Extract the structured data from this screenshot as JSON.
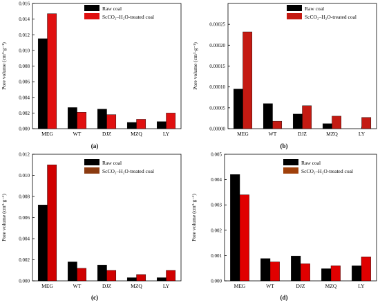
{
  "figure": {
    "colors": {
      "raw": "#000000",
      "treated_a": "#e01010",
      "treated_b": "#c41a12",
      "treated_c": "#d00000",
      "treated_d": "#e00000",
      "legend_treated_c": "#8b3a10",
      "legend_treated_d": "#a0400a"
    }
  },
  "chart_data": [
    {
      "panel_label": "(a)",
      "type": "bar",
      "ylabel": "Pore volume (cm³·g⁻¹)",
      "categories": [
        "MEG",
        "WT",
        "DJZ",
        "MZQ",
        "LY"
      ],
      "ylim": [
        0,
        0.016
      ],
      "yticks": [
        "0.000",
        "0.002",
        "0.004",
        "0.006",
        "0.008",
        "0.010",
        "0.012",
        "0.014",
        "0.016"
      ],
      "ytick_values": [
        0,
        0.002,
        0.004,
        0.006,
        0.008,
        0.01,
        0.012,
        0.014,
        0.016
      ],
      "legend_position": "top-right",
      "series": [
        {
          "name": "Raw coal",
          "color": "#000000",
          "values": [
            0.0115,
            0.0027,
            0.0025,
            0.0008,
            0.0009
          ]
        },
        {
          "name": "ScCO₂–H₂O-treated coal",
          "color": "#e01010",
          "values": [
            0.0147,
            0.0021,
            0.0018,
            0.0012,
            0.002
          ]
        }
      ]
    },
    {
      "panel_label": "(b)",
      "type": "bar",
      "ylabel": "Pore volume (cm³·g⁻¹)",
      "categories": [
        "MEG",
        "WT",
        "DJZ",
        "MZQ",
        "LY"
      ],
      "ylim": [
        0,
        0.0003
      ],
      "yticks": [
        "0.00000",
        "0.00005",
        "0.00010",
        "0.00015",
        "0.00020",
        "0.00025"
      ],
      "ytick_values": [
        0,
        5e-05,
        0.0001,
        0.00015,
        0.0002,
        0.00025
      ],
      "legend_position": "top-right",
      "series": [
        {
          "name": "Raw coal",
          "color": "#000000",
          "values": [
            9.5e-05,
            6e-05,
            3.5e-05,
            1.2e-05,
            0.0
          ]
        },
        {
          "name": "ScCO₂–H₂O-treated coal",
          "color": "#c41a12",
          "values": [
            0.000232,
            1.8e-05,
            5.5e-05,
            3e-05,
            2.7e-05
          ]
        }
      ]
    },
    {
      "panel_label": "(c)",
      "type": "bar",
      "ylabel": "Pore volume (cm³·g⁻¹)",
      "categories": [
        "MEG",
        "WT",
        "DJZ",
        "MZQ",
        "LY"
      ],
      "ylim": [
        0,
        0.012
      ],
      "yticks": [
        "0.000",
        "0.002",
        "0.004",
        "0.006",
        "0.008",
        "0.010",
        "0.012"
      ],
      "ytick_values": [
        0,
        0.002,
        0.004,
        0.006,
        0.008,
        0.01,
        0.012
      ],
      "legend_position": "top-right",
      "series": [
        {
          "name": "Raw coal",
          "color": "#000000",
          "values": [
            0.0072,
            0.0018,
            0.0015,
            0.0003,
            0.0003
          ]
        },
        {
          "name": "ScCO₂–H₂O-treated coal",
          "color": "#d00000",
          "values": [
            0.011,
            0.0012,
            0.001,
            0.0006,
            0.001
          ]
        }
      ]
    },
    {
      "panel_label": "(d)",
      "type": "bar",
      "ylabel": "Pore volume (cm³·g⁻¹)",
      "categories": [
        "MEG",
        "WT",
        "DJZ",
        "MZQ",
        "LY"
      ],
      "ylim": [
        0,
        0.005
      ],
      "yticks": [
        "0.000",
        "0.001",
        "0.002",
        "0.003",
        "0.004",
        "0.005"
      ],
      "ytick_values": [
        0,
        0.001,
        0.002,
        0.003,
        0.004,
        0.005
      ],
      "legend_position": "top-right",
      "series": [
        {
          "name": "Raw coal",
          "color": "#000000",
          "values": [
            0.0042,
            0.00088,
            0.00098,
            0.00048,
            0.0006
          ]
        },
        {
          "name": "ScCO₂–H₂O-treated coal",
          "color": "#e00000",
          "values": [
            0.0034,
            0.00075,
            0.00068,
            0.0006,
            0.00095
          ]
        }
      ]
    }
  ]
}
